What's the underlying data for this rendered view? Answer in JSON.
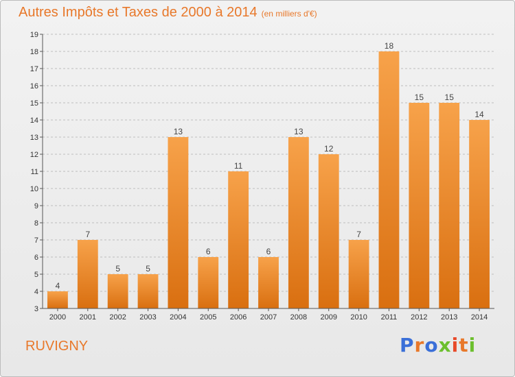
{
  "title": "Autres Impôts et Taxes de 2000 à 2014",
  "unit": "(en milliers d'€)",
  "town": "RUVIGNY",
  "logo": {
    "letters": [
      "P",
      "r",
      "o",
      "x",
      "i",
      "t",
      "i"
    ],
    "colors": [
      "#3a6fd8",
      "#e8782a",
      "#3a6fd8",
      "#6cbf2e",
      "#e84a2a",
      "#e8782a",
      "#6cbf2e"
    ]
  },
  "colors": {
    "bar_top": "#f7a24a",
    "bar_bottom": "#d96f10",
    "axis": "#555555",
    "grid": "#bdbdbd"
  },
  "chart_data": {
    "type": "bar",
    "title": "Autres Impôts et Taxes de 2000 à 2014",
    "categories": [
      "2000",
      "2001",
      "2002",
      "2003",
      "2004",
      "2005",
      "2006",
      "2007",
      "2008",
      "2009",
      "2010",
      "2011",
      "2012",
      "2013",
      "2014"
    ],
    "values": [
      4,
      7,
      5,
      5,
      13,
      6,
      11,
      6,
      13,
      12,
      7,
      18,
      15,
      15,
      14
    ],
    "ylim": [
      3,
      19
    ],
    "yticks": [
      3,
      4,
      5,
      6,
      7,
      8,
      9,
      10,
      11,
      12,
      13,
      14,
      15,
      16,
      17,
      18,
      19
    ],
    "grid": true,
    "xlabel": "",
    "ylabel": ""
  }
}
